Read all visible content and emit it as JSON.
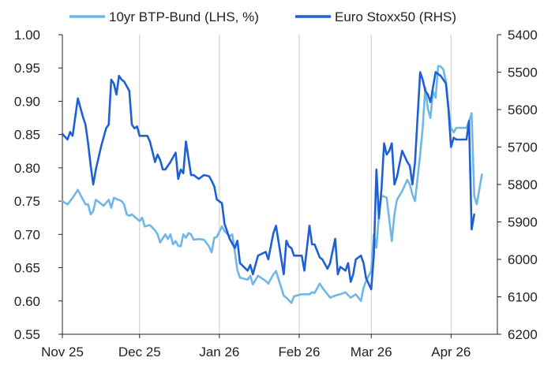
{
  "chart_data": {
    "type": "line",
    "title": "",
    "x_axis": {
      "tick_labels": [
        "Nov 25",
        "Dec 25",
        "Jan 26",
        "Feb 26",
        "Mar 26",
        "Apr 26"
      ],
      "tick_dates": [
        "2025-11-01",
        "2025-12-01",
        "2026-01-01",
        "2026-02-01",
        "2026-03-01",
        "2026-04-01"
      ],
      "range": [
        "2025-11-01",
        "2026-04-19"
      ],
      "grid": true
    },
    "y_left": {
      "range": [
        0.55,
        1.0
      ],
      "ticks": [
        "1.00",
        "0.95",
        "0.90",
        "0.85",
        "0.80",
        "0.75",
        "0.70",
        "0.65",
        "0.60",
        "0.55"
      ],
      "tick_values": [
        1.0,
        0.95,
        0.9,
        0.85,
        0.8,
        0.75,
        0.7,
        0.65,
        0.6,
        0.55
      ]
    },
    "y_right": {
      "range": [
        5400,
        6200
      ],
      "inverted": true,
      "ticks": [
        "5400",
        "5500",
        "5600",
        "5700",
        "5800",
        "5900",
        "6000",
        "6100",
        "6200"
      ],
      "tick_values": [
        5400,
        5500,
        5600,
        5700,
        5800,
        5900,
        6000,
        6100,
        6200
      ]
    },
    "legend": {
      "placement": "top"
    },
    "series": [
      {
        "name": "10yr BTP-Bund (LHS, %)",
        "axis": "left",
        "color": "#6fb7e6",
        "points": [
          [
            "2025-11-01",
            0.75
          ],
          [
            "2025-11-03",
            0.745
          ],
          [
            "2025-11-05",
            0.755
          ],
          [
            "2025-11-07",
            0.767
          ],
          [
            "2025-11-10",
            0.745
          ],
          [
            "2025-11-11",
            0.745
          ],
          [
            "2025-11-12",
            0.73
          ],
          [
            "2025-11-13",
            0.735
          ],
          [
            "2025-11-14",
            0.752
          ],
          [
            "2025-11-17",
            0.743
          ],
          [
            "2025-11-19",
            0.752
          ],
          [
            "2025-11-20",
            0.74
          ],
          [
            "2025-11-21",
            0.755
          ],
          [
            "2025-11-24",
            0.75
          ],
          [
            "2025-11-25",
            0.745
          ],
          [
            "2025-11-26",
            0.73
          ],
          [
            "2025-11-27",
            0.728
          ],
          [
            "2025-11-28",
            0.73
          ],
          [
            "2025-12-01",
            0.72
          ],
          [
            "2025-12-02",
            0.725
          ],
          [
            "2025-12-03",
            0.712
          ],
          [
            "2025-12-05",
            0.714
          ],
          [
            "2025-12-07",
            0.706
          ],
          [
            "2025-12-08",
            0.7
          ],
          [
            "2025-12-09",
            0.688
          ],
          [
            "2025-12-11",
            0.7
          ],
          [
            "2025-12-12",
            0.693
          ],
          [
            "2025-12-13",
            0.7
          ],
          [
            "2025-12-14",
            0.685
          ],
          [
            "2025-12-15",
            0.69
          ],
          [
            "2025-12-16",
            0.683
          ],
          [
            "2025-12-17",
            0.682
          ],
          [
            "2025-12-18",
            0.7
          ],
          [
            "2025-12-19",
            0.695
          ],
          [
            "2025-12-20",
            0.702
          ],
          [
            "2025-12-21",
            0.7
          ],
          [
            "2025-12-22",
            0.692
          ],
          [
            "2025-12-24",
            0.693
          ],
          [
            "2025-12-26",
            0.692
          ],
          [
            "2025-12-28",
            0.682
          ],
          [
            "2025-12-29",
            0.673
          ],
          [
            "2025-12-30",
            0.695
          ],
          [
            "2025-12-31",
            0.696
          ],
          [
            "2026-01-02",
            0.712
          ],
          [
            "2026-01-03",
            0.705
          ],
          [
            "2026-01-05",
            0.697
          ],
          [
            "2026-01-06",
            0.7
          ],
          [
            "2026-01-07",
            0.675
          ],
          [
            "2026-01-08",
            0.646
          ],
          [
            "2026-01-09",
            0.635
          ],
          [
            "2026-01-12",
            0.632
          ],
          [
            "2026-01-13",
            0.638
          ],
          [
            "2026-01-14",
            0.625
          ],
          [
            "2026-01-16",
            0.638
          ],
          [
            "2026-01-19",
            0.63
          ],
          [
            "2026-01-20",
            0.626
          ],
          [
            "2026-01-22",
            0.64
          ],
          [
            "2026-01-23",
            0.645
          ],
          [
            "2026-01-26",
            0.608
          ],
          [
            "2026-01-27",
            0.605
          ],
          [
            "2026-01-29",
            0.597
          ],
          [
            "2026-01-30",
            0.607
          ],
          [
            "2026-02-02",
            0.61
          ],
          [
            "2026-02-03",
            0.61
          ],
          [
            "2026-02-05",
            0.61
          ],
          [
            "2026-02-06",
            0.613
          ],
          [
            "2026-02-07",
            0.612
          ],
          [
            "2026-02-09",
            0.626
          ],
          [
            "2026-02-10",
            0.62
          ],
          [
            "2026-02-12",
            0.61
          ],
          [
            "2026-02-13",
            0.605
          ],
          [
            "2026-02-15",
            0.608
          ],
          [
            "2026-02-17",
            0.61
          ],
          [
            "2026-02-19",
            0.613
          ],
          [
            "2026-02-21",
            0.605
          ],
          [
            "2026-02-23",
            0.61
          ],
          [
            "2026-02-25",
            0.6
          ],
          [
            "2026-02-26",
            0.62
          ],
          [
            "2026-02-27",
            0.63
          ],
          [
            "2026-03-01",
            0.645
          ],
          [
            "2026-03-02",
            0.7
          ],
          [
            "2026-03-03",
            0.68
          ],
          [
            "2026-03-04",
            0.73
          ],
          [
            "2026-03-05",
            0.758
          ],
          [
            "2026-03-06",
            0.757
          ],
          [
            "2026-03-07",
            0.755
          ],
          [
            "2026-03-09",
            0.69
          ],
          [
            "2026-03-10",
            0.73
          ],
          [
            "2026-03-11",
            0.752
          ],
          [
            "2026-03-13",
            0.765
          ],
          [
            "2026-03-15",
            0.782
          ],
          [
            "2026-03-16",
            0.775
          ],
          [
            "2026-03-17",
            0.76
          ],
          [
            "2026-03-18",
            0.75
          ],
          [
            "2026-03-20",
            0.82
          ],
          [
            "2026-03-21",
            0.86
          ],
          [
            "2026-03-22",
            0.92
          ],
          [
            "2026-03-23",
            0.888
          ],
          [
            "2026-03-24",
            0.875
          ],
          [
            "2026-03-25",
            0.915
          ],
          [
            "2026-03-26",
            0.905
          ],
          [
            "2026-03-27",
            0.953
          ],
          [
            "2026-03-28",
            0.952
          ],
          [
            "2026-03-29",
            0.948
          ],
          [
            "2026-03-30",
            0.93
          ],
          [
            "2026-03-31",
            0.89
          ],
          [
            "2026-04-01",
            0.86
          ],
          [
            "2026-04-02",
            0.853
          ],
          [
            "2026-04-03",
            0.86
          ],
          [
            "2026-04-06",
            0.86
          ],
          [
            "2026-04-07",
            0.86
          ],
          [
            "2026-04-08",
            0.87
          ],
          [
            "2026-04-09",
            0.882
          ],
          [
            "2026-04-10",
            0.758
          ],
          [
            "2026-04-11",
            0.745
          ],
          [
            "2026-04-13",
            0.79
          ]
        ]
      },
      {
        "name": "Euro Stoxx50 (RHS)",
        "axis": "right",
        "color": "#1f5fd6",
        "points": [
          [
            "2025-11-01",
            5665
          ],
          [
            "2025-11-03",
            5680
          ],
          [
            "2025-11-04",
            5660
          ],
          [
            "2025-11-05",
            5670
          ],
          [
            "2025-11-07",
            5570
          ],
          [
            "2025-11-09",
            5620
          ],
          [
            "2025-11-10",
            5640
          ],
          [
            "2025-11-11",
            5690
          ],
          [
            "2025-11-12",
            5750
          ],
          [
            "2025-11-13",
            5800
          ],
          [
            "2025-11-14",
            5760
          ],
          [
            "2025-11-16",
            5700
          ],
          [
            "2025-11-18",
            5650
          ],
          [
            "2025-11-19",
            5640
          ],
          [
            "2025-11-20",
            5520
          ],
          [
            "2025-11-21",
            5530
          ],
          [
            "2025-11-22",
            5560
          ],
          [
            "2025-11-23",
            5510
          ],
          [
            "2025-11-24",
            5520
          ],
          [
            "2025-11-25",
            5525
          ],
          [
            "2025-11-27",
            5550
          ],
          [
            "2025-11-28",
            5640
          ],
          [
            "2025-11-29",
            5650
          ],
          [
            "2025-11-30",
            5645
          ],
          [
            "2025-12-01",
            5670
          ],
          [
            "2025-12-04",
            5670
          ],
          [
            "2025-12-05",
            5685
          ],
          [
            "2025-12-07",
            5740
          ],
          [
            "2025-12-08",
            5720
          ],
          [
            "2025-12-09",
            5735
          ],
          [
            "2025-12-10",
            5760
          ],
          [
            "2025-12-11",
            5760
          ],
          [
            "2025-12-13",
            5740
          ],
          [
            "2025-12-15",
            5715
          ],
          [
            "2025-12-16",
            5785
          ],
          [
            "2025-12-17",
            5760
          ],
          [
            "2025-12-18",
            5770
          ],
          [
            "2025-12-19",
            5685
          ],
          [
            "2025-12-21",
            5775
          ],
          [
            "2025-12-22",
            5775
          ],
          [
            "2025-12-24",
            5785
          ],
          [
            "2025-12-26",
            5775
          ],
          [
            "2025-12-28",
            5778
          ],
          [
            "2025-12-29",
            5790
          ],
          [
            "2025-12-30",
            5805
          ],
          [
            "2025-12-31",
            5840
          ],
          [
            "2026-01-02",
            5850
          ],
          [
            "2026-01-03",
            5905
          ],
          [
            "2026-01-05",
            5945
          ],
          [
            "2026-01-07",
            5970
          ],
          [
            "2026-01-08",
            5950
          ],
          [
            "2026-01-09",
            6010
          ],
          [
            "2026-01-12",
            6030
          ],
          [
            "2026-01-13",
            6015
          ],
          [
            "2026-01-14",
            6040
          ],
          [
            "2026-01-16",
            5990
          ],
          [
            "2026-01-19",
            5980
          ],
          [
            "2026-01-20",
            6000
          ],
          [
            "2026-01-22",
            5930
          ],
          [
            "2026-01-23",
            5910
          ],
          [
            "2026-01-26",
            6040
          ],
          [
            "2026-01-27",
            5950
          ],
          [
            "2026-01-28",
            5965
          ],
          [
            "2026-01-29",
            5970
          ],
          [
            "2026-01-30",
            5990
          ],
          [
            "2026-02-02",
            5990
          ],
          [
            "2026-02-03",
            6030
          ],
          [
            "2026-02-05",
            5910
          ],
          [
            "2026-02-06",
            5960
          ],
          [
            "2026-02-07",
            5960
          ],
          [
            "2026-02-09",
            5995
          ],
          [
            "2026-02-10",
            6000
          ],
          [
            "2026-02-12",
            6025
          ],
          [
            "2026-02-13",
            6010
          ],
          [
            "2026-02-15",
            5945
          ],
          [
            "2026-02-16",
            6040
          ],
          [
            "2026-02-17",
            6020
          ],
          [
            "2026-02-19",
            6030
          ],
          [
            "2026-02-20",
            6010
          ],
          [
            "2026-02-21",
            6060
          ],
          [
            "2026-02-22",
            6040
          ],
          [
            "2026-02-23",
            6000
          ],
          [
            "2026-02-25",
            5990
          ],
          [
            "2026-02-26",
            6010
          ],
          [
            "2026-02-27",
            6050
          ],
          [
            "2026-03-01",
            6080
          ],
          [
            "2026-03-02",
            5990
          ],
          [
            "2026-03-03",
            5760
          ],
          [
            "2026-03-04",
            5890
          ],
          [
            "2026-03-05",
            5810
          ],
          [
            "2026-03-06",
            5690
          ],
          [
            "2026-03-07",
            5720
          ],
          [
            "2026-03-08",
            5710
          ],
          [
            "2026-03-09",
            5690
          ],
          [
            "2026-03-10",
            5800
          ],
          [
            "2026-03-11",
            5780
          ],
          [
            "2026-03-13",
            5710
          ],
          [
            "2026-03-15",
            5740
          ],
          [
            "2026-03-16",
            5750
          ],
          [
            "2026-03-17",
            5800
          ],
          [
            "2026-03-18",
            5740
          ],
          [
            "2026-03-20",
            5500
          ],
          [
            "2026-03-21",
            5520
          ],
          [
            "2026-03-22",
            5550
          ],
          [
            "2026-03-23",
            5560
          ],
          [
            "2026-03-24",
            5580
          ],
          [
            "2026-03-26",
            5500
          ],
          [
            "2026-03-28",
            5510
          ],
          [
            "2026-03-30",
            5530
          ],
          [
            "2026-03-31",
            5600
          ],
          [
            "2026-04-01",
            5700
          ],
          [
            "2026-04-02",
            5675
          ],
          [
            "2026-04-03",
            5680
          ],
          [
            "2026-04-06",
            5680
          ],
          [
            "2026-04-07",
            5680
          ],
          [
            "2026-04-08",
            5630
          ],
          [
            "2026-04-09",
            5920
          ],
          [
            "2026-04-10",
            5880
          ]
        ]
      }
    ]
  }
}
